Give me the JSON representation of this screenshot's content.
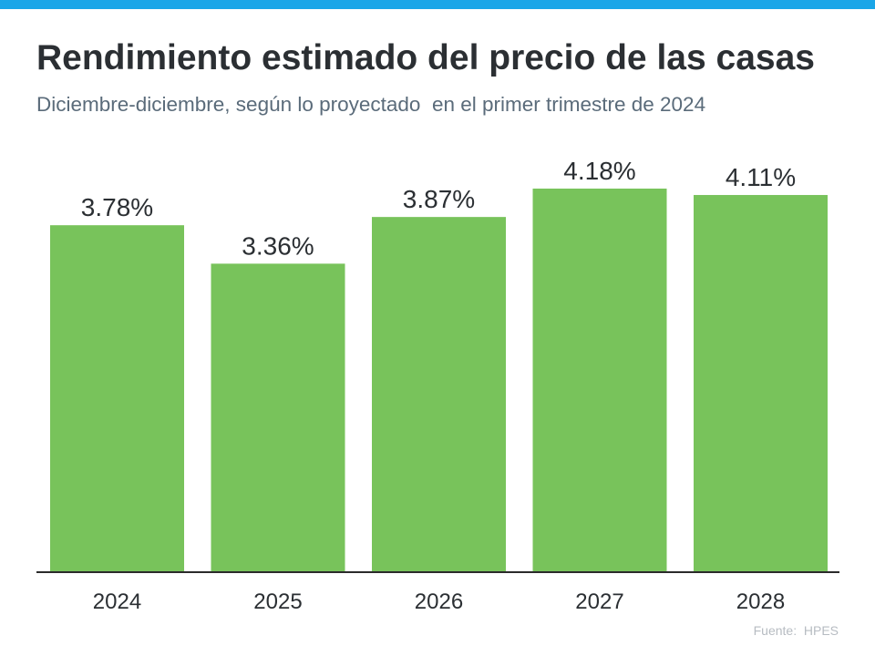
{
  "header": {
    "title": "Rendimiento estimado del precio de las casas",
    "subtitle": "Diciembre-diciembre, según lo proyectado  en el primer trimestre de 2024"
  },
  "source": "Fuente:  HPES",
  "colors": {
    "top_bar": "#1aa6e8",
    "bar": "#78c35b",
    "axis": "#2b2b2b",
    "label": "#2b2f33"
  },
  "chart_data": {
    "type": "bar",
    "categories": [
      "2024",
      "2025",
      "2026",
      "2027",
      "2028"
    ],
    "values": [
      3.78,
      3.36,
      3.87,
      4.18,
      4.11
    ],
    "value_labels": [
      "3.78%",
      "3.36%",
      "3.87%",
      "4.18%",
      "4.11%"
    ],
    "ylim": [
      0,
      4.18
    ],
    "grid": false,
    "legend": "none"
  }
}
